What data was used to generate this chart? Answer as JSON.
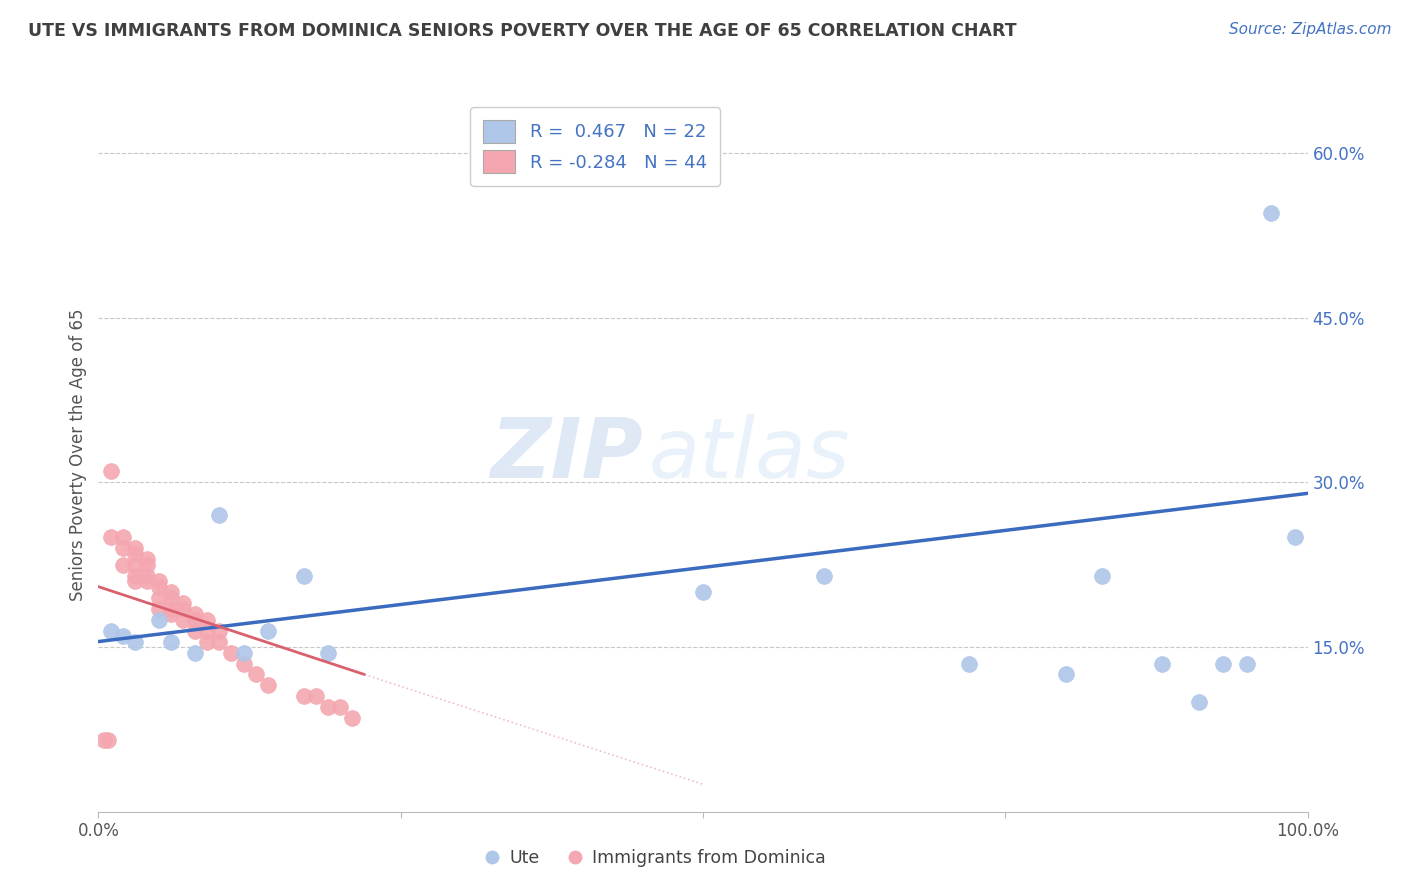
{
  "title": "UTE VS IMMIGRANTS FROM DOMINICA SENIORS POVERTY OVER THE AGE OF 65 CORRELATION CHART",
  "source": "Source: ZipAtlas.com",
  "ylabel": "Seniors Poverty Over the Age of 65",
  "watermark_zip": "ZIP",
  "watermark_atlas": "atlas",
  "ute_color": "#aec6e8",
  "dom_color": "#f4a7b0",
  "ute_line_color": "#3a6bbf",
  "dom_line_color": "#d9606c",
  "title_color": "#404040",
  "source_color": "#4472c4",
  "xlim": [
    0.0,
    1.0
  ],
  "ylim": [
    0.0,
    0.65
  ],
  "ytick_values": [
    0.15,
    0.3,
    0.45,
    0.6
  ],
  "ytick_labels": [
    "15.0%",
    "30.0%",
    "45.0%",
    "60.0%"
  ],
  "background_color": "#ffffff",
  "grid_color": "#c8c8c8",
  "legend_text_color": "#4472c4",
  "ute_x": [
    0.01,
    0.02,
    0.03,
    0.05,
    0.06,
    0.08,
    0.1,
    0.12,
    0.14,
    0.17,
    0.19,
    0.5,
    0.6,
    0.72,
    0.8,
    0.83,
    0.88,
    0.91,
    0.93,
    0.95,
    0.97,
    0.99
  ],
  "ute_y": [
    0.165,
    0.16,
    0.155,
    0.175,
    0.155,
    0.145,
    0.27,
    0.145,
    0.165,
    0.215,
    0.145,
    0.2,
    0.215,
    0.135,
    0.125,
    0.215,
    0.135,
    0.1,
    0.135,
    0.135,
    0.545,
    0.25
  ],
  "dom_x": [
    0.005,
    0.008,
    0.01,
    0.01,
    0.02,
    0.02,
    0.02,
    0.03,
    0.03,
    0.03,
    0.03,
    0.03,
    0.04,
    0.04,
    0.04,
    0.04,
    0.05,
    0.05,
    0.05,
    0.05,
    0.06,
    0.06,
    0.06,
    0.06,
    0.07,
    0.07,
    0.07,
    0.08,
    0.08,
    0.08,
    0.09,
    0.09,
    0.09,
    0.1,
    0.1,
    0.11,
    0.12,
    0.13,
    0.14,
    0.17,
    0.18,
    0.19,
    0.2,
    0.21
  ],
  "dom_y": [
    0.065,
    0.065,
    0.31,
    0.25,
    0.25,
    0.24,
    0.225,
    0.24,
    0.235,
    0.225,
    0.215,
    0.21,
    0.23,
    0.225,
    0.215,
    0.21,
    0.21,
    0.205,
    0.195,
    0.185,
    0.2,
    0.195,
    0.185,
    0.18,
    0.19,
    0.185,
    0.175,
    0.18,
    0.175,
    0.165,
    0.175,
    0.165,
    0.155,
    0.165,
    0.155,
    0.145,
    0.135,
    0.125,
    0.115,
    0.105,
    0.105,
    0.095,
    0.095,
    0.085
  ],
  "ute_line_x0": 0.0,
  "ute_line_y0": 0.155,
  "ute_line_x1": 1.0,
  "ute_line_y1": 0.29,
  "dom_line_x0": 0.0,
  "dom_line_y0": 0.205,
  "dom_line_x1": 0.22,
  "dom_line_y1": 0.125,
  "dom_line_ext_x1": 0.5,
  "dom_line_ext_y1": 0.025
}
